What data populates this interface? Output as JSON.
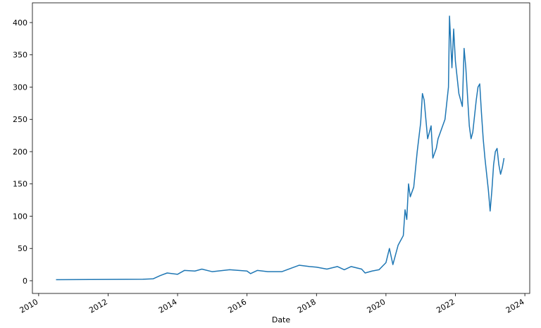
{
  "chart_data": {
    "type": "line",
    "xlabel": "Date",
    "x": [
      2010.5,
      2011,
      2011.5,
      2012,
      2012.5,
      2013,
      2013.3,
      2013.5,
      2013.7,
      2014,
      2014.2,
      2014.5,
      2014.7,
      2015,
      2015.5,
      2016,
      2016.1,
      2016.3,
      2016.6,
      2017,
      2017.3,
      2017.5,
      2017.8,
      2018,
      2018.3,
      2018.6,
      2018.8,
      2019,
      2019.3,
      2019.4,
      2019.6,
      2019.8,
      2020,
      2020.1,
      2020.2,
      2020.35,
      2020.5,
      2020.55,
      2020.6,
      2020.65,
      2020.7,
      2020.8,
      2020.9,
      2021.0,
      2021.05,
      2021.1,
      2021.2,
      2021.3,
      2021.35,
      2021.45,
      2021.5,
      2021.6,
      2021.7,
      2021.8,
      2021.83,
      2021.9,
      2021.95,
      2022.0,
      2022.1,
      2022.2,
      2022.25,
      2022.3,
      2022.4,
      2022.45,
      2022.5,
      2022.6,
      2022.65,
      2022.7,
      2022.75,
      2022.8,
      2022.85,
      2022.95,
      2023.0,
      2023.05,
      2023.1,
      2023.15,
      2023.2,
      2023.25,
      2023.3,
      2023.35,
      2023.4
    ],
    "series": [
      {
        "color": "#1f77b4",
        "values": [
          1.6,
          1.8,
          1.9,
          2,
          2.2,
          2.3,
          3,
          8,
          12,
          10,
          16,
          15,
          18,
          14,
          17,
          15,
          11,
          16,
          14,
          14,
          20,
          24,
          22,
          21,
          18,
          22,
          17,
          22,
          18,
          12,
          15,
          17,
          28,
          50,
          25,
          55,
          70,
          110,
          95,
          150,
          130,
          145,
          200,
          245,
          290,
          280,
          220,
          240,
          190,
          205,
          220,
          235,
          250,
          300,
          410,
          330,
          390,
          340,
          290,
          270,
          360,
          330,
          240,
          220,
          230,
          280,
          300,
          305,
          260,
          220,
          190,
          140,
          108,
          140,
          180,
          200,
          205,
          180,
          165,
          175,
          190
        ]
      }
    ],
    "xlim": [
      2009.82,
      2024.14
    ],
    "xticks": [
      2010,
      2012,
      2014,
      2016,
      2018,
      2020,
      2022,
      2024
    ],
    "ylim": [
      -19.7,
      430.6
    ],
    "yticks": [
      0,
      50,
      100,
      150,
      200,
      250,
      300,
      350,
      400
    ]
  }
}
